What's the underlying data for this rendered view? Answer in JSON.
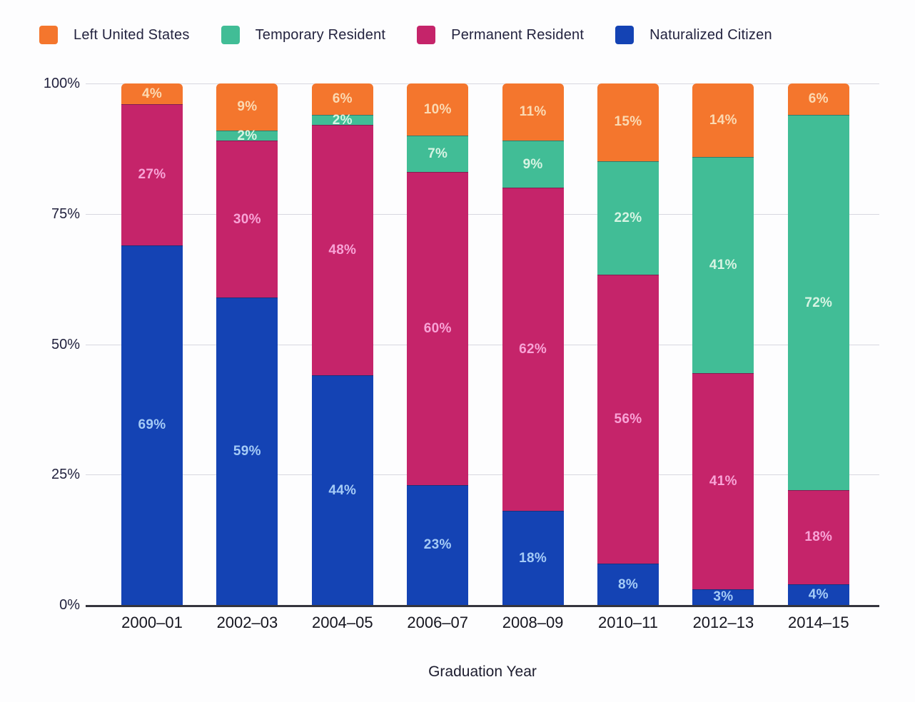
{
  "legend": {
    "position": "top",
    "items": [
      {
        "label": "Left United States",
        "color": "#f4762d"
      },
      {
        "label": "Temporary Resident",
        "color": "#41bd96"
      },
      {
        "label": "Permanent Resident",
        "color": "#c5246a"
      },
      {
        "label": "Naturalized Citizen",
        "color": "#1443b4"
      }
    ]
  },
  "y_axis": {
    "tick_labels": [
      "100%",
      "75%",
      "50%",
      "25%",
      "0%"
    ],
    "tick_values": [
      100,
      75,
      50,
      25,
      0
    ]
  },
  "x_axis": {
    "title": "Graduation Year"
  },
  "chart_data": {
    "type": "bar",
    "stacked": true,
    "title": "",
    "xlabel": "Graduation Year",
    "ylabel": "",
    "ylim": [
      0,
      100
    ],
    "grid": "horizontal",
    "legend_position": "top",
    "categories": [
      "2000–01",
      "2002–03",
      "2004–05",
      "2006–07",
      "2008–09",
      "2010–11",
      "2012–13",
      "2014–15"
    ],
    "series": [
      {
        "name": "Left United States",
        "color": "#f4762d",
        "label_color": "#fbd9b2",
        "values": [
          4,
          9,
          6,
          10,
          11,
          15,
          14,
          6
        ]
      },
      {
        "name": "Temporary Resident",
        "color": "#41bd96",
        "label_color": "#d7f4e3",
        "values": [
          0,
          2,
          2,
          7,
          9,
          22,
          41,
          72
        ]
      },
      {
        "name": "Permanent Resident",
        "color": "#c5246a",
        "label_color": "#f8a3d6",
        "values": [
          27,
          30,
          48,
          60,
          62,
          56,
          41,
          18
        ]
      },
      {
        "name": "Naturalized Citizen",
        "color": "#1443b4",
        "label_color": "#a5cbf6",
        "values": [
          69,
          59,
          44,
          23,
          18,
          8,
          3,
          4
        ]
      }
    ],
    "data_label_format": "{value}%"
  }
}
